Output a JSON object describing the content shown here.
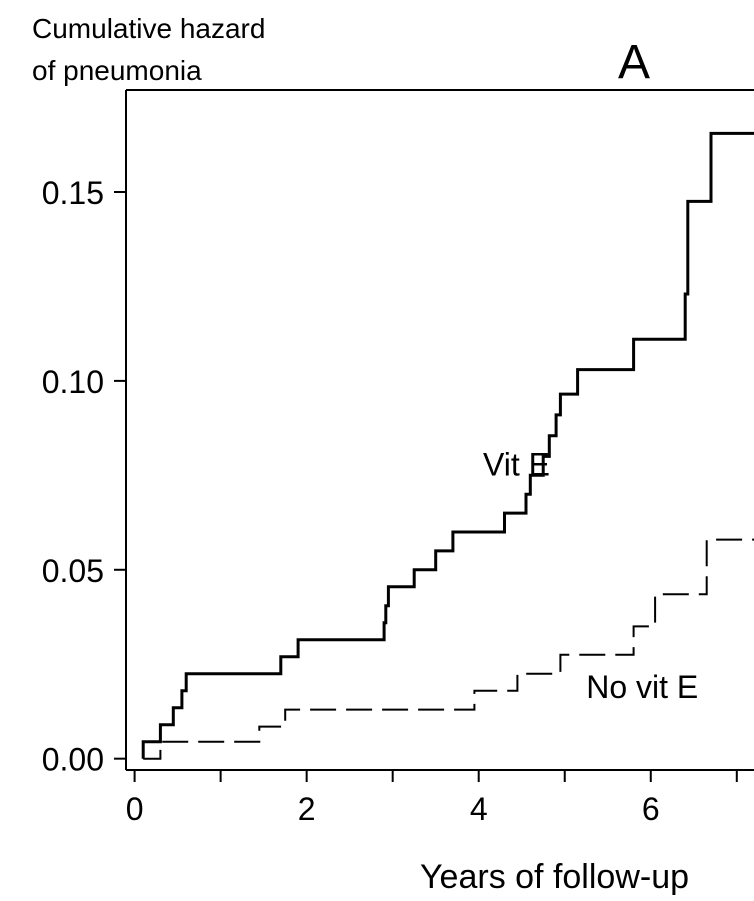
{
  "chart_data": {
    "type": "line",
    "panel_label": "A",
    "ylabel_lines": [
      "Cumulative hazard",
      "of pneumonia"
    ],
    "xlabel": "Years of follow-up",
    "xlim": [
      -0.1,
      7.2
    ],
    "ylim": [
      -0.003,
      0.177
    ],
    "x_ticks": [
      0,
      2,
      4,
      6
    ],
    "x_tick_labels": [
      "0",
      "2",
      "4",
      "6"
    ],
    "x_minor_ticks": [
      1,
      3,
      5,
      7
    ],
    "y_ticks": [
      0.0,
      0.05,
      0.1,
      0.15
    ],
    "y_tick_labels": [
      "0.00",
      "0.05",
      "0.10",
      "0.15"
    ],
    "series": [
      {
        "name": "Vit E",
        "style": "solid",
        "label_at": [
          4.05,
          0.075
        ],
        "points": [
          [
            0.1,
            0.0
          ],
          [
            0.1,
            0.0045
          ],
          [
            0.3,
            0.0045
          ],
          [
            0.3,
            0.009
          ],
          [
            0.45,
            0.009
          ],
          [
            0.45,
            0.0135
          ],
          [
            0.55,
            0.0135
          ],
          [
            0.55,
            0.018
          ],
          [
            0.6,
            0.018
          ],
          [
            0.6,
            0.0225
          ],
          [
            1.7,
            0.0225
          ],
          [
            1.7,
            0.027
          ],
          [
            1.9,
            0.027
          ],
          [
            1.9,
            0.0315
          ],
          [
            2.9,
            0.0315
          ],
          [
            2.9,
            0.036
          ],
          [
            2.92,
            0.036
          ],
          [
            2.92,
            0.0405
          ],
          [
            2.95,
            0.0405
          ],
          [
            2.95,
            0.0455
          ],
          [
            3.25,
            0.0455
          ],
          [
            3.25,
            0.05
          ],
          [
            3.5,
            0.05
          ],
          [
            3.5,
            0.055
          ],
          [
            3.7,
            0.055
          ],
          [
            3.7,
            0.06
          ],
          [
            4.3,
            0.06
          ],
          [
            4.3,
            0.065
          ],
          [
            4.55,
            0.065
          ],
          [
            4.55,
            0.07
          ],
          [
            4.6,
            0.07
          ],
          [
            4.6,
            0.075
          ],
          [
            4.75,
            0.075
          ],
          [
            4.75,
            0.08
          ],
          [
            4.82,
            0.08
          ],
          [
            4.82,
            0.0855
          ],
          [
            4.9,
            0.0855
          ],
          [
            4.9,
            0.091
          ],
          [
            4.95,
            0.091
          ],
          [
            4.95,
            0.0965
          ],
          [
            5.15,
            0.0965
          ],
          [
            5.15,
            0.103
          ],
          [
            5.8,
            0.103
          ],
          [
            5.8,
            0.111
          ],
          [
            6.4,
            0.111
          ],
          [
            6.4,
            0.123
          ],
          [
            6.43,
            0.123
          ],
          [
            6.43,
            0.1475
          ],
          [
            6.7,
            0.1475
          ],
          [
            6.7,
            0.1655
          ],
          [
            7.2,
            0.1655
          ]
        ]
      },
      {
        "name": "No vit E",
        "style": "dashed",
        "label_at": [
          5.25,
          0.016
        ],
        "points": [
          [
            0.1,
            0.0
          ],
          [
            0.1,
            0.0
          ],
          [
            0.3,
            0.0
          ],
          [
            0.3,
            0.0045
          ],
          [
            1.45,
            0.0045
          ],
          [
            1.45,
            0.0085
          ],
          [
            1.75,
            0.0085
          ],
          [
            1.75,
            0.013
          ],
          [
            3.95,
            0.013
          ],
          [
            3.95,
            0.018
          ],
          [
            4.45,
            0.018
          ],
          [
            4.45,
            0.0225
          ],
          [
            4.95,
            0.0225
          ],
          [
            4.95,
            0.0275
          ],
          [
            5.8,
            0.0275
          ],
          [
            5.8,
            0.035
          ],
          [
            6.05,
            0.035
          ],
          [
            6.05,
            0.0435
          ],
          [
            6.65,
            0.0435
          ],
          [
            6.65,
            0.058
          ],
          [
            7.2,
            0.058
          ]
        ]
      }
    ]
  }
}
